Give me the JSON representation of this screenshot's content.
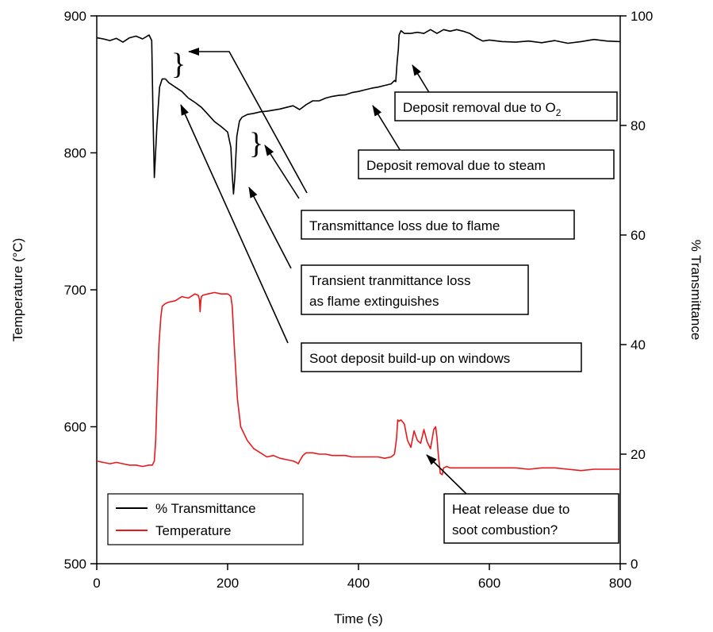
{
  "chart_data": {
    "type": "line",
    "title": "",
    "xlabel": "Time (s)",
    "ylabel_left": "Temperature (°C)",
    "ylabel_right": "% Transmittance",
    "xlim": [
      0,
      800
    ],
    "ylim_left": [
      500,
      900
    ],
    "ylim_right": [
      0,
      100
    ],
    "x_ticks": [
      0,
      200,
      400,
      600,
      800
    ],
    "y_left_ticks": [
      500,
      600,
      700,
      800,
      900
    ],
    "y_right_ticks": [
      0,
      20,
      40,
      60,
      80,
      100
    ],
    "grid": false,
    "legend_position": "bottom-left",
    "series": [
      {
        "name": "% Transmittance",
        "axis": "right",
        "color": "#000000",
        "x": [
          0,
          10,
          20,
          30,
          40,
          50,
          60,
          70,
          80,
          84,
          86,
          88,
          92,
          96,
          100,
          105,
          110,
          120,
          130,
          140,
          150,
          160,
          170,
          180,
          190,
          200,
          205,
          207,
          209,
          211,
          214,
          218,
          222,
          230,
          240,
          250,
          260,
          270,
          280,
          290,
          300,
          310,
          320,
          330,
          340,
          350,
          360,
          370,
          380,
          390,
          400,
          410,
          420,
          430,
          440,
          450,
          455,
          457,
          459,
          461,
          462,
          465,
          470,
          480,
          490,
          500,
          510,
          520,
          530,
          540,
          550,
          560,
          570,
          580,
          590,
          600,
          620,
          640,
          660,
          680,
          700,
          720,
          740,
          760,
          780,
          800
        ],
        "y": [
          96.0,
          95.8,
          95.5,
          95.9,
          95.2,
          96.0,
          96.3,
          95.8,
          96.5,
          95.5,
          82.0,
          70.5,
          80.0,
          87.0,
          88.5,
          88.5,
          87.8,
          87.0,
          86.2,
          85.0,
          84.2,
          83.3,
          82.0,
          80.7,
          79.8,
          78.8,
          76.0,
          71.0,
          67.5,
          70.5,
          78.0,
          80.8,
          81.5,
          82.0,
          82.2,
          82.5,
          82.6,
          82.8,
          83.0,
          83.3,
          83.6,
          82.9,
          83.8,
          84.5,
          84.5,
          85.0,
          85.3,
          85.5,
          85.6,
          86.0,
          86.2,
          86.5,
          86.8,
          87.0,
          87.3,
          87.6,
          88.2,
          88.0,
          91.5,
          94.0,
          96.5,
          97.3,
          96.8,
          96.8,
          97.0,
          96.8,
          97.5,
          96.8,
          97.5,
          97.2,
          97.5,
          97.2,
          96.8,
          96.0,
          95.4,
          95.6,
          95.3,
          95.2,
          95.4,
          95.1,
          95.5,
          95.0,
          95.3,
          95.7,
          95.4,
          95.3
        ]
      },
      {
        "name": "Temperature",
        "axis": "left",
        "color": "#e8191c",
        "x": [
          0,
          10,
          20,
          30,
          40,
          50,
          60,
          70,
          80,
          85,
          88,
          90,
          92,
          95,
          98,
          100,
          105,
          110,
          120,
          130,
          140,
          150,
          155,
          157,
          158,
          159,
          160,
          162,
          170,
          180,
          190,
          200,
          203,
          205,
          207,
          210,
          215,
          220,
          230,
          240,
          250,
          260,
          270,
          280,
          290,
          300,
          305,
          308,
          310,
          315,
          320,
          330,
          340,
          350,
          360,
          370,
          380,
          390,
          400,
          410,
          420,
          430,
          440,
          450,
          455,
          458,
          460,
          462,
          465,
          470,
          475,
          480,
          485,
          490,
          495,
          500,
          505,
          510,
          515,
          518,
          520,
          522,
          525,
          528,
          530,
          535,
          540,
          550,
          560,
          570,
          580,
          590,
          600,
          620,
          640,
          660,
          680,
          700,
          720,
          740,
          760,
          780,
          800
        ],
        "y": [
          575,
          574,
          573,
          574,
          573,
          572,
          572,
          571,
          572,
          572,
          575,
          590,
          620,
          660,
          680,
          688,
          690,
          691,
          692,
          695,
          694,
          697,
          696,
          693,
          684,
          692,
          695,
          696,
          697,
          698,
          697,
          697,
          696,
          695,
          688,
          660,
          620,
          600,
          590,
          584,
          581,
          578,
          579,
          577,
          576,
          575,
          574,
          573,
          575,
          579,
          581,
          581,
          580,
          580,
          579,
          579,
          579,
          578,
          578,
          578,
          578,
          578,
          577,
          578,
          580,
          591,
          605,
          604,
          605,
          602,
          590,
          585,
          597,
          590,
          588,
          598,
          589,
          584,
          598,
          600,
          592,
          580,
          566,
          565,
          570,
          571,
          570,
          570,
          570,
          570,
          570,
          570,
          570,
          570,
          570,
          569,
          570,
          570,
          569,
          568,
          569,
          569,
          569
        ]
      }
    ],
    "annotations": [
      {
        "lines": [
          "Deposit removal due to O"
        ],
        "subscript": "2"
      },
      {
        "lines": [
          "Deposit removal due to steam"
        ]
      },
      {
        "lines": [
          "Transmittance loss due to flame"
        ]
      },
      {
        "lines": [
          "Transient tranmittance loss",
          "as flame extinguishes"
        ]
      },
      {
        "lines": [
          "Soot deposit build-up on windows"
        ]
      },
      {
        "lines": [
          "Heat release due to",
          "soot combustion?"
        ]
      }
    ],
    "braces": [
      "}",
      "}"
    ]
  }
}
